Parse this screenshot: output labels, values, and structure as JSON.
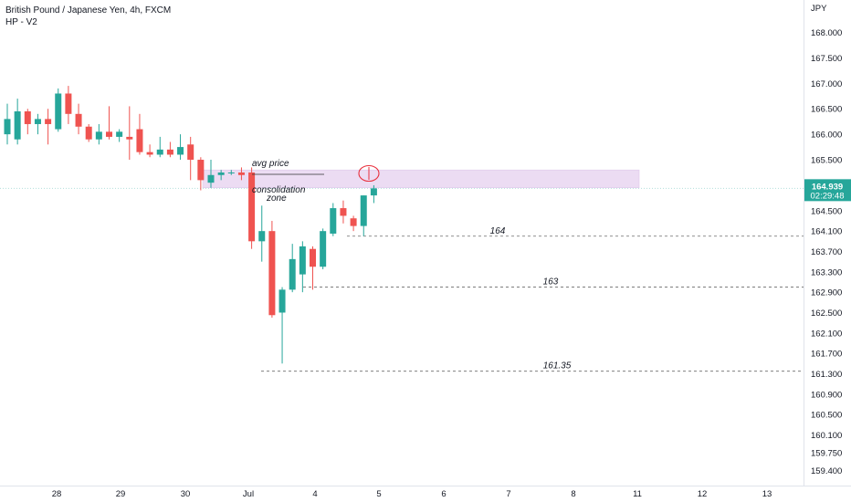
{
  "header": {
    "symbol_title": "British Pound / Japanese Yen, 4h, FXCM",
    "indicator": "HP - V2"
  },
  "price_axis": {
    "currency": "JPY",
    "current_price": "164.939",
    "countdown": "02:29:48"
  },
  "colors": {
    "up": "#26a69a",
    "down": "#ef5350",
    "zone_fill": "#e9d7f2",
    "zone_border": "#d9bfe8",
    "current_price_badge": "#26a69a",
    "circle": "#e8303d"
  },
  "chart_data": {
    "type": "candlestick",
    "x_ticks": [
      "28",
      "29",
      "30",
      "Jul",
      "4",
      "5",
      "6",
      "7",
      "8",
      "11",
      "12",
      "13"
    ],
    "y_ticks": [
      168.0,
      167.5,
      167.0,
      166.5,
      166.0,
      165.5,
      164.5,
      164.1,
      163.7,
      163.3,
      162.9,
      162.5,
      162.1,
      161.7,
      161.3,
      160.9,
      160.5,
      160.1,
      159.75,
      159.4
    ],
    "y_range": [
      159.0,
      168.5
    ],
    "candles": [
      {
        "o": 166.0,
        "h": 166.6,
        "l": 165.8,
        "c": 166.3
      },
      {
        "o": 165.9,
        "h": 166.7,
        "l": 165.8,
        "c": 166.45
      },
      {
        "o": 166.45,
        "h": 166.5,
        "l": 166.0,
        "c": 166.2
      },
      {
        "o": 166.2,
        "h": 166.4,
        "l": 166.0,
        "c": 166.3
      },
      {
        "o": 166.3,
        "h": 166.5,
        "l": 165.8,
        "c": 166.2
      },
      {
        "o": 166.1,
        "h": 166.9,
        "l": 166.05,
        "c": 166.8
      },
      {
        "o": 166.8,
        "h": 166.95,
        "l": 166.2,
        "c": 166.4
      },
      {
        "o": 166.4,
        "h": 166.6,
        "l": 166.0,
        "c": 166.15
      },
      {
        "o": 166.15,
        "h": 166.2,
        "l": 165.85,
        "c": 165.9
      },
      {
        "o": 165.9,
        "h": 166.2,
        "l": 165.8,
        "c": 166.05
      },
      {
        "o": 166.05,
        "h": 166.55,
        "l": 165.9,
        "c": 165.95
      },
      {
        "o": 165.95,
        "h": 166.1,
        "l": 165.85,
        "c": 166.05
      },
      {
        "o": 165.95,
        "h": 166.55,
        "l": 165.5,
        "c": 165.9
      },
      {
        "o": 166.1,
        "h": 166.4,
        "l": 165.6,
        "c": 165.65
      },
      {
        "o": 165.65,
        "h": 165.8,
        "l": 165.55,
        "c": 165.6
      },
      {
        "o": 165.6,
        "h": 165.95,
        "l": 165.55,
        "c": 165.7
      },
      {
        "o": 165.7,
        "h": 165.85,
        "l": 165.55,
        "c": 165.6
      },
      {
        "o": 165.6,
        "h": 166.0,
        "l": 165.5,
        "c": 165.75
      },
      {
        "o": 165.8,
        "h": 165.95,
        "l": 165.1,
        "c": 165.5
      },
      {
        "o": 165.5,
        "h": 165.55,
        "l": 164.9,
        "c": 165.1
      },
      {
        "o": 165.05,
        "h": 165.5,
        "l": 164.95,
        "c": 165.2
      },
      {
        "o": 165.2,
        "h": 165.3,
        "l": 165.1,
        "c": 165.25
      },
      {
        "o": 165.25,
        "h": 165.3,
        "l": 165.2,
        "c": 165.25
      },
      {
        "o": 165.25,
        "h": 165.35,
        "l": 165.1,
        "c": 165.2
      },
      {
        "o": 165.25,
        "h": 165.35,
        "l": 163.75,
        "c": 163.9
      },
      {
        "o": 163.9,
        "h": 164.6,
        "l": 163.5,
        "c": 164.1
      },
      {
        "o": 164.1,
        "h": 164.3,
        "l": 162.4,
        "c": 162.45
      },
      {
        "o": 162.5,
        "h": 163.0,
        "l": 161.5,
        "c": 162.95
      },
      {
        "o": 162.95,
        "h": 163.85,
        "l": 162.9,
        "c": 163.55
      },
      {
        "o": 163.25,
        "h": 163.9,
        "l": 162.9,
        "c": 163.8
      },
      {
        "o": 163.75,
        "h": 163.8,
        "l": 162.95,
        "c": 163.4
      },
      {
        "o": 163.4,
        "h": 164.15,
        "l": 163.35,
        "c": 164.1
      },
      {
        "o": 164.05,
        "h": 164.65,
        "l": 164.0,
        "c": 164.55
      },
      {
        "o": 164.55,
        "h": 164.7,
        "l": 164.25,
        "c": 164.4
      },
      {
        "o": 164.35,
        "h": 164.4,
        "l": 164.1,
        "c": 164.2
      },
      {
        "o": 164.2,
        "h": 164.8,
        "l": 164.0,
        "c": 164.8
      },
      {
        "o": 164.8,
        "h": 165.0,
        "l": 164.65,
        "c": 164.939
      }
    ],
    "horizontal_levels": [
      {
        "label": "164",
        "price": 164.0
      },
      {
        "label": "163",
        "price": 163.0
      },
      {
        "label": "161.35",
        "price": 161.35
      }
    ],
    "zone": {
      "top": 165.3,
      "bottom": 164.95
    },
    "annotations": {
      "avg_price": "avg price",
      "consolidation_1": "consolidation",
      "consolidation_2": "zone"
    }
  }
}
